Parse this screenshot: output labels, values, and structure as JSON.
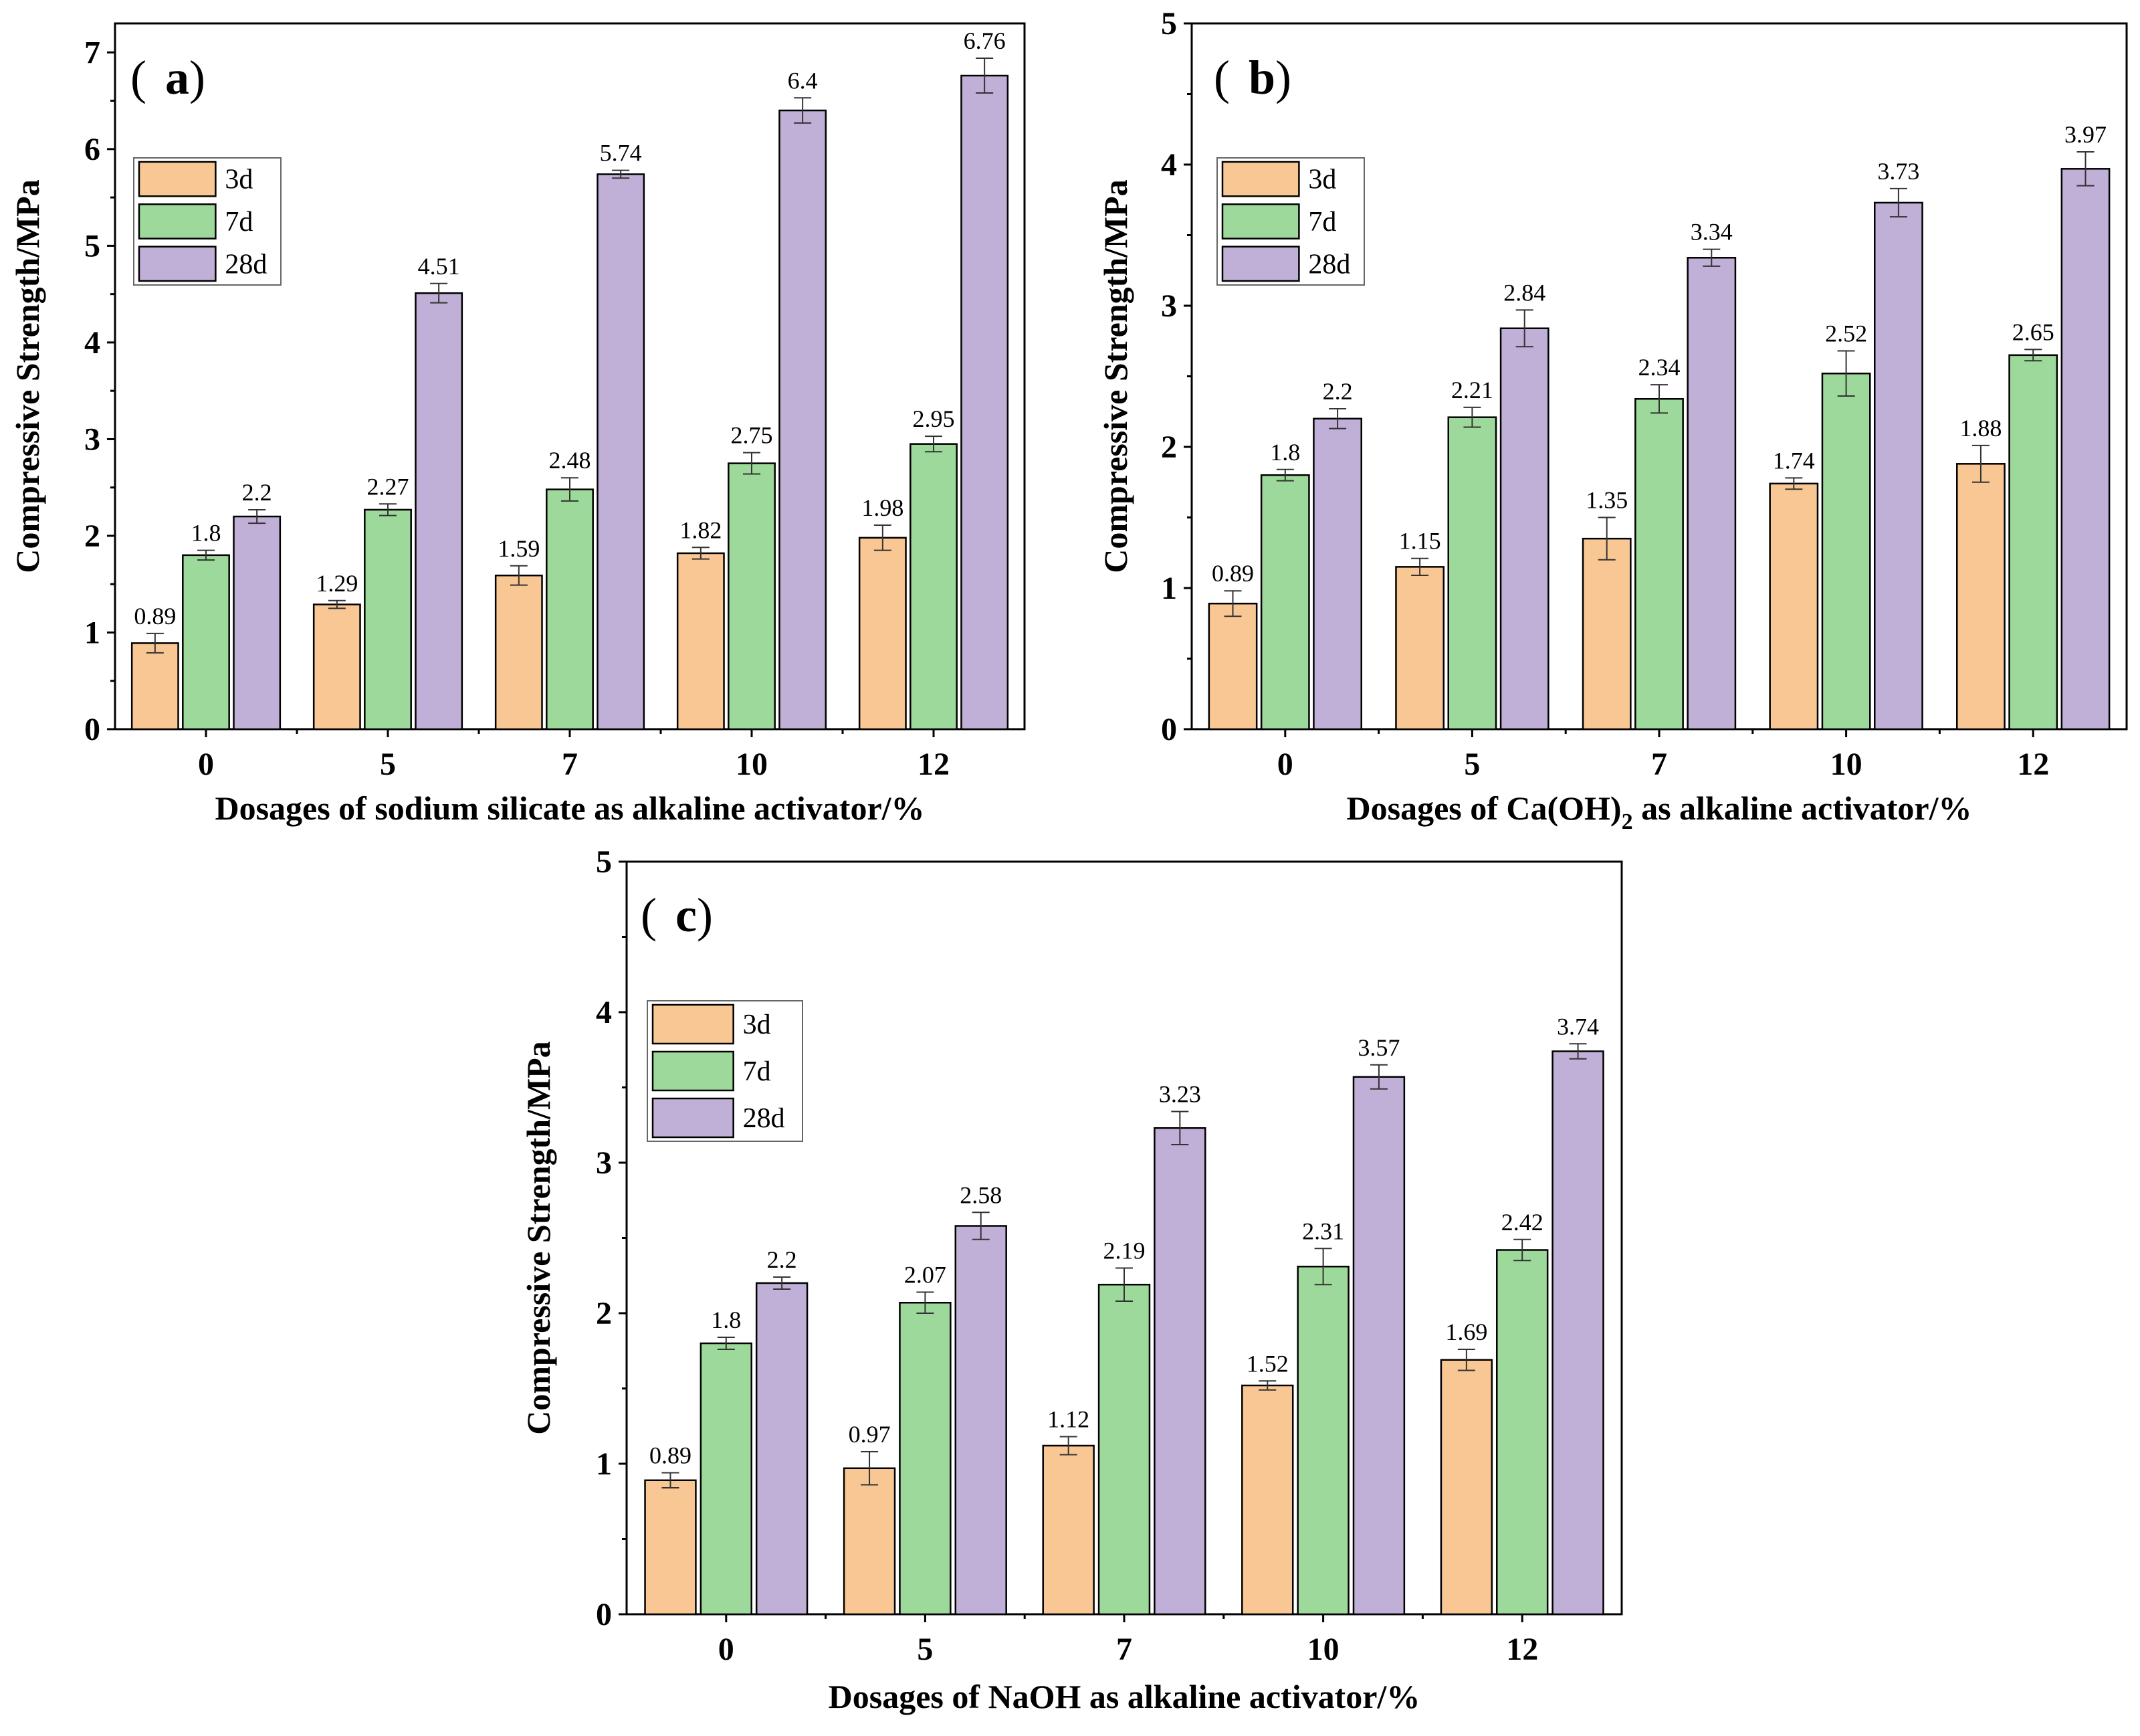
{
  "chart_data": [
    {
      "type": "bar",
      "panel": "a",
      "categories": [
        "0",
        "5",
        "7",
        "10",
        "12"
      ],
      "series": [
        {
          "name": "3d",
          "values": [
            0.89,
            1.29,
            1.59,
            1.82,
            1.98
          ],
          "errors": [
            0.1,
            0.04,
            0.1,
            0.06,
            0.13
          ],
          "color": "#F9C794"
        },
        {
          "name": "7d",
          "values": [
            1.8,
            2.27,
            2.48,
            2.75,
            2.95
          ],
          "errors": [
            0.05,
            0.06,
            0.12,
            0.11,
            0.08
          ],
          "color": "#9DD99A"
        },
        {
          "name": "28d",
          "values": [
            2.2,
            4.51,
            5.74,
            6.4,
            6.76
          ],
          "errors": [
            0.07,
            0.1,
            0.04,
            0.13,
            0.18
          ],
          "color": "#C0AFD6"
        }
      ],
      "value_labels": [
        [
          "0.89",
          "1.29",
          "1.59",
          "1.82",
          "1.98"
        ],
        [
          "1.8",
          "2.27",
          "2.48",
          "2.75",
          "2.95"
        ],
        [
          "2.2",
          "4.51",
          "5.74",
          "6.4",
          "6.76"
        ]
      ],
      "ylim": [
        0,
        7.3
      ],
      "yticks": [
        0,
        1,
        2,
        3,
        4,
        5,
        6,
        7
      ],
      "ytick_labels": [
        "0",
        "1",
        "2",
        "3",
        "4",
        "5",
        "6",
        "7"
      ],
      "xlabel": "Dosages of sodium silicate as alkaline activator/%",
      "ylabel": "Compressive Strength/MPa",
      "panel_label": {
        "open": "(",
        "letter": "a",
        "close": ")"
      },
      "legend": [
        "3d",
        "7d",
        "28d"
      ]
    },
    {
      "type": "bar",
      "panel": "b",
      "categories": [
        "0",
        "5",
        "7",
        "10",
        "12"
      ],
      "series": [
        {
          "name": "3d",
          "values": [
            0.89,
            1.15,
            1.35,
            1.74,
            1.88
          ],
          "errors": [
            0.09,
            0.06,
            0.15,
            0.04,
            0.13
          ],
          "color": "#F9C794"
        },
        {
          "name": "7d",
          "values": [
            1.8,
            2.21,
            2.34,
            2.52,
            2.65
          ],
          "errors": [
            0.04,
            0.07,
            0.1,
            0.16,
            0.04
          ],
          "color": "#9DD99A"
        },
        {
          "name": "28d",
          "values": [
            2.2,
            2.84,
            3.34,
            3.73,
            3.97
          ],
          "errors": [
            0.07,
            0.13,
            0.06,
            0.1,
            0.12
          ],
          "color": "#C0AFD6"
        }
      ],
      "value_labels": [
        [
          "0.89",
          "1.15",
          "1.35",
          "1.74",
          "1.88"
        ],
        [
          "1.8",
          "2.21",
          "2.34",
          "2.52",
          "2.65"
        ],
        [
          "2.2",
          "2.84",
          "3.34",
          "3.73",
          "3.97"
        ]
      ],
      "ylim": [
        0,
        5
      ],
      "yticks": [
        0,
        1,
        2,
        3,
        4,
        5
      ],
      "ytick_labels": [
        "0",
        "1",
        "2",
        "3",
        "4",
        "5"
      ],
      "xlabel_parts": [
        "Dosages of Ca(OH)",
        "2",
        " as alkaline activator/%"
      ],
      "ylabel": "Compressive Strength/MPa",
      "panel_label": {
        "open": "(",
        "letter": "b",
        "close": ")"
      },
      "legend": [
        "3d",
        "7d",
        "28d"
      ]
    },
    {
      "type": "bar",
      "panel": "c",
      "categories": [
        "0",
        "5",
        "7",
        "10",
        "12"
      ],
      "series": [
        {
          "name": "3d",
          "values": [
            0.89,
            0.97,
            1.12,
            1.52,
            1.69
          ],
          "errors": [
            0.05,
            0.11,
            0.06,
            0.03,
            0.07
          ],
          "color": "#F9C794"
        },
        {
          "name": "7d",
          "values": [
            1.8,
            2.07,
            2.19,
            2.31,
            2.42
          ],
          "errors": [
            0.04,
            0.07,
            0.11,
            0.12,
            0.07
          ],
          "color": "#9DD99A"
        },
        {
          "name": "28d",
          "values": [
            2.2,
            2.58,
            3.23,
            3.57,
            3.74
          ],
          "errors": [
            0.04,
            0.09,
            0.11,
            0.08,
            0.05
          ],
          "color": "#C0AFD6"
        }
      ],
      "value_labels": [
        [
          "0.89",
          "0.97",
          "1.12",
          "1.52",
          "1.69"
        ],
        [
          "1.8",
          "2.07",
          "2.19",
          "2.31",
          "2.42"
        ],
        [
          "2.2",
          "2.58",
          "3.23",
          "3.57",
          "3.74"
        ]
      ],
      "ylim": [
        0,
        5
      ],
      "yticks": [
        0,
        1,
        2,
        3,
        4,
        5
      ],
      "ytick_labels": [
        "0",
        "1",
        "2",
        "3",
        "4",
        "5"
      ],
      "xlabel": "Dosages of NaOH as alkaline activator/%",
      "ylabel": "Compressive Strength/MPa",
      "panel_label": {
        "open": "(",
        "letter": "c",
        "close": ")"
      },
      "legend": [
        "3d",
        "7d",
        "28d"
      ]
    }
  ]
}
